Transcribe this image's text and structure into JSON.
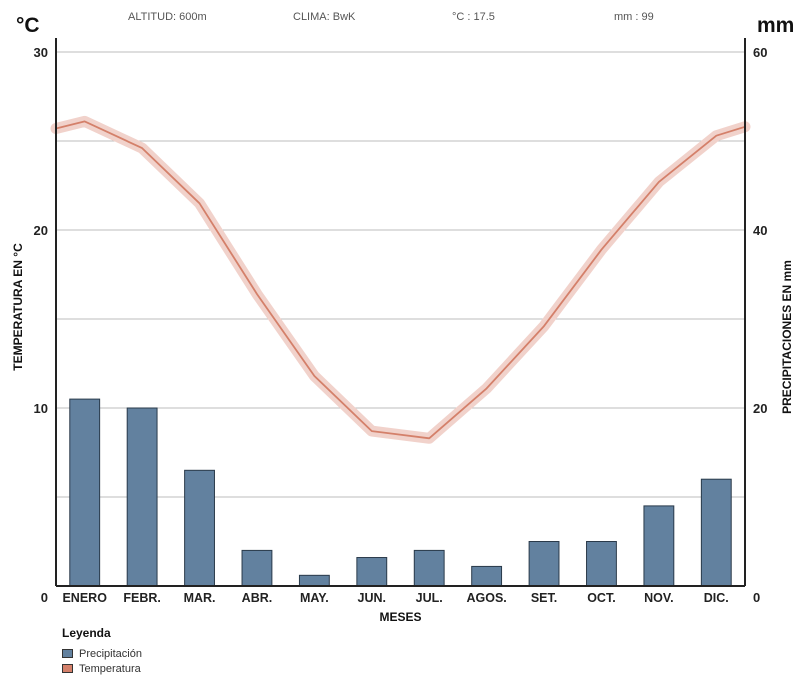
{
  "header": {
    "altitude": "ALTITUD: 600m",
    "climate": "CLIMA: BwK",
    "temp_mean": "°C : 17.5",
    "precip_total": "mm : 99",
    "left_unit": "°C",
    "right_unit": "mm"
  },
  "colors": {
    "bar": "#62819f",
    "bar_stroke": "#2a3a4a",
    "line": "#d4806a",
    "line_halo": "#f1d2cb",
    "grid": "#bdbdbd",
    "axis": "#222222"
  },
  "legend": {
    "title": "Leyenda",
    "items": [
      {
        "label": "Precipitación",
        "color": "#62819f"
      },
      {
        "label": "Temperatura",
        "color": "#d4806a"
      }
    ]
  },
  "chart_data": {
    "type": "bar+line",
    "categories": [
      "ENERO",
      "FEBR.",
      "MAR.",
      "ABR.",
      "MAY.",
      "JUN.",
      "JUL.",
      "AGOS.",
      "SET.",
      "OCT.",
      "NOV.",
      "DIC."
    ],
    "xlabel": "MESES",
    "ylabel_left": "TEMPERATURA EN °C",
    "ylabel_right": "PRECIPITACIONES EN mm",
    "ylim_left": [
      0,
      30
    ],
    "ylim_right": [
      0,
      60
    ],
    "yticks_left": [
      0,
      10,
      20,
      30
    ],
    "yticks_right": [
      0,
      20,
      40,
      60
    ],
    "grid": true,
    "series": [
      {
        "name": "Precipitación",
        "type": "bar",
        "axis": "right",
        "values": [
          21,
          20,
          13,
          4,
          1.2,
          3.2,
          4,
          2.2,
          5,
          5,
          9,
          12
        ]
      },
      {
        "name": "Temperatura",
        "type": "line",
        "axis": "left",
        "values": [
          26.1,
          24.6,
          21.5,
          16.4,
          11.8,
          8.7,
          8.3,
          11.1,
          14.6,
          18.9,
          22.7,
          25.3
        ],
        "end_values": [
          25.7,
          25.8
        ]
      }
    ]
  }
}
